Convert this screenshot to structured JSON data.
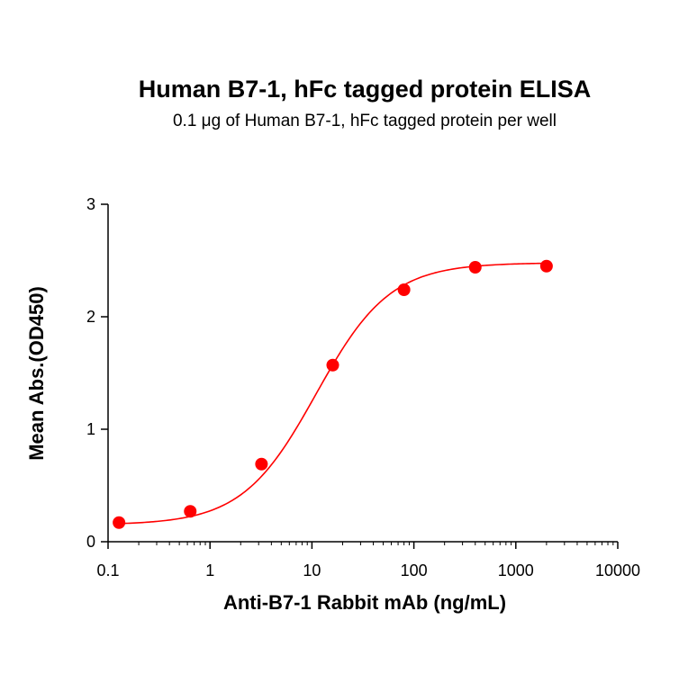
{
  "chart_data": {
    "type": "scatter",
    "title": "Human B7-1, hFc tagged protein ELISA",
    "subtitle": "0.1 μg of Human B7-1, hFc tagged protein per well",
    "xlabel": "Anti-B7-1 Rabbit mAb (ng/mL)",
    "ylabel": "Mean Abs.(OD450)",
    "x_scale": "log",
    "xlim": [
      0.1,
      10000
    ],
    "ylim": [
      0,
      3
    ],
    "x_ticks": [
      0.1,
      1,
      10,
      100,
      1000,
      10000
    ],
    "x_tick_labels": [
      "0.1",
      "1",
      "10",
      "100",
      "1000",
      "10000"
    ],
    "y_ticks": [
      0,
      1,
      2,
      3
    ],
    "y_tick_labels": [
      "0",
      "1",
      "2",
      "3"
    ],
    "grid": false,
    "color": "#ff0000",
    "points": [
      {
        "x": 0.128,
        "y": 0.17
      },
      {
        "x": 0.64,
        "y": 0.27
      },
      {
        "x": 3.2,
        "y": 0.69
      },
      {
        "x": 16,
        "y": 1.57
      },
      {
        "x": 80,
        "y": 2.24
      },
      {
        "x": 400,
        "y": 2.44
      },
      {
        "x": 2000,
        "y": 2.45
      }
    ],
    "fit_curve": {
      "model": "4PL",
      "bottom": 0.15,
      "top": 2.48,
      "ec50": 11,
      "hill": 1.2,
      "x_range": [
        0.128,
        2000
      ]
    }
  }
}
